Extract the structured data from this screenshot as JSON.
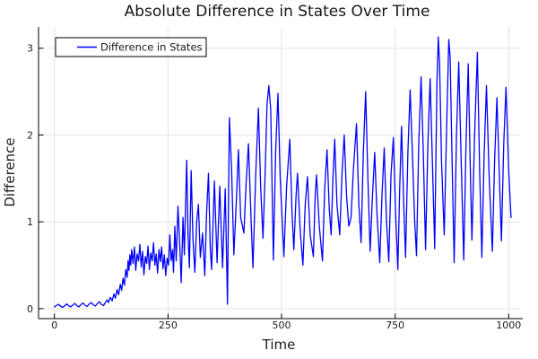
{
  "title": "Absolute Difference in States Over Time",
  "chart_data": {
    "type": "line",
    "title": "Absolute Difference in States Over Time",
    "xlabel": "Time",
    "ylabel": "Difference",
    "x_ticks": [
      0,
      250,
      500,
      750,
      1000
    ],
    "y_ticks": [
      0,
      1,
      2,
      3
    ],
    "xlim": [
      -35,
      1025
    ],
    "ylim": [
      -0.115,
      3.245
    ],
    "grid": true,
    "legend_position": "top-left",
    "line_color": "#0000ff",
    "grid_color": "#e2e2e2",
    "axis_color": "#000000",
    "background_color": "#ffffff",
    "series": [
      {
        "name": "Difference in States",
        "points": [
          [
            0,
            0.02
          ],
          [
            4,
            0.035
          ],
          [
            9,
            0.05
          ],
          [
            13,
            0.03
          ],
          [
            18,
            0.015
          ],
          [
            22,
            0.03
          ],
          [
            27,
            0.055
          ],
          [
            31,
            0.035
          ],
          [
            36,
            0.02
          ],
          [
            40,
            0.04
          ],
          [
            45,
            0.06
          ],
          [
            49,
            0.035
          ],
          [
            54,
            0.02
          ],
          [
            58,
            0.045
          ],
          [
            63,
            0.065
          ],
          [
            67,
            0.04
          ],
          [
            72,
            0.025
          ],
          [
            76,
            0.05
          ],
          [
            81,
            0.07
          ],
          [
            85,
            0.045
          ],
          [
            90,
            0.03
          ],
          [
            94,
            0.055
          ],
          [
            99,
            0.08
          ],
          [
            103,
            0.05
          ],
          [
            108,
            0.035
          ],
          [
            112,
            0.07
          ],
          [
            116,
            0.1
          ],
          [
            119,
            0.07
          ],
          [
            123,
            0.13
          ],
          [
            127,
            0.09
          ],
          [
            131,
            0.17
          ],
          [
            134,
            0.12
          ],
          [
            138,
            0.22
          ],
          [
            141,
            0.16
          ],
          [
            145,
            0.28
          ],
          [
            148,
            0.21
          ],
          [
            151,
            0.35
          ],
          [
            154,
            0.27
          ],
          [
            157,
            0.45
          ],
          [
            160,
            0.36
          ],
          [
            162,
            0.55
          ],
          [
            164,
            0.44
          ],
          [
            166,
            0.62
          ],
          [
            168,
            0.5
          ],
          [
            170,
            0.68
          ],
          [
            173,
            0.52
          ],
          [
            176,
            0.71
          ],
          [
            179,
            0.44
          ],
          [
            182,
            0.63
          ],
          [
            185,
            0.55
          ],
          [
            188,
            0.74
          ],
          [
            191,
            0.48
          ],
          [
            194,
            0.66
          ],
          [
            197,
            0.39
          ],
          [
            200,
            0.6
          ],
          [
            203,
            0.52
          ],
          [
            206,
            0.72
          ],
          [
            209,
            0.45
          ],
          [
            212,
            0.64
          ],
          [
            215,
            0.55
          ],
          [
            218,
            0.76
          ],
          [
            221,
            0.5
          ],
          [
            224,
            0.63
          ],
          [
            227,
            0.41
          ],
          [
            230,
            0.68
          ],
          [
            233,
            0.54
          ],
          [
            236,
            0.71
          ],
          [
            239,
            0.46
          ],
          [
            242,
            0.62
          ],
          [
            245,
            0.38
          ],
          [
            248,
            0.58
          ],
          [
            251,
            0.5
          ],
          [
            254,
            0.85
          ],
          [
            257,
            0.55
          ],
          [
            260,
            0.68
          ],
          [
            262,
            0.42
          ],
          [
            265,
            0.95
          ],
          [
            268,
            0.55
          ],
          [
            272,
            1.18
          ],
          [
            276,
            0.7
          ],
          [
            279,
            0.3
          ],
          [
            283,
            1.05
          ],
          [
            286,
            0.62
          ],
          [
            291,
            1.71
          ],
          [
            294,
            0.85
          ],
          [
            297,
            0.47
          ],
          [
            301,
            1.59
          ],
          [
            305,
            0.8
          ],
          [
            309,
            0.42
          ],
          [
            313,
            1.0
          ],
          [
            317,
            1.2
          ],
          [
            321,
            0.59
          ],
          [
            326,
            0.87
          ],
          [
            331,
            0.38
          ],
          [
            335,
            1.1
          ],
          [
            339,
            1.56
          ],
          [
            343,
            0.7
          ],
          [
            346,
            0.45
          ],
          [
            352,
            1.47
          ],
          [
            358,
            0.53
          ],
          [
            364,
            1.41
          ],
          [
            370,
            0.47
          ],
          [
            376,
            1.38
          ],
          [
            381,
            0.05
          ],
          [
            385,
            2.2
          ],
          [
            390,
            1.6
          ],
          [
            395,
            0.62
          ],
          [
            400,
            1.2
          ],
          [
            405,
            1.83
          ],
          [
            410,
            1.05
          ],
          [
            417,
            0.87
          ],
          [
            422,
            1.45
          ],
          [
            427,
            1.9
          ],
          [
            433,
            1.0
          ],
          [
            437,
            0.47
          ],
          [
            443,
            1.55
          ],
          [
            449,
            2.31
          ],
          [
            454,
            1.4
          ],
          [
            459,
            0.81
          ],
          [
            464,
            1.6
          ],
          [
            468,
            2.35
          ],
          [
            472,
            2.57
          ],
          [
            476,
            2.3
          ],
          [
            482,
            0.56
          ],
          [
            487,
            1.8
          ],
          [
            492,
            2.48
          ],
          [
            497,
            1.5
          ],
          [
            505,
            0.6
          ],
          [
            511,
            1.4
          ],
          [
            518,
            1.95
          ],
          [
            523,
            1.1
          ],
          [
            527,
            0.68
          ],
          [
            532,
            1.3
          ],
          [
            535,
            1.56
          ],
          [
            541,
            0.9
          ],
          [
            547,
            0.5
          ],
          [
            552,
            1.2
          ],
          [
            557,
            1.52
          ],
          [
            563,
            0.85
          ],
          [
            570,
            0.6
          ],
          [
            574,
            1.3
          ],
          [
            577,
            1.54
          ],
          [
            583,
            0.95
          ],
          [
            590,
            0.55
          ],
          [
            595,
            1.4
          ],
          [
            600,
            1.83
          ],
          [
            605,
            1.15
          ],
          [
            609,
            0.85
          ],
          [
            613,
            1.5
          ],
          [
            617,
            1.95
          ],
          [
            622,
            1.2
          ],
          [
            628,
            0.85
          ],
          [
            633,
            1.55
          ],
          [
            638,
            2.0
          ],
          [
            643,
            1.3
          ],
          [
            648,
            0.95
          ],
          [
            653,
            1.05
          ],
          [
            658,
            1.6
          ],
          [
            665,
            2.13
          ],
          [
            670,
            1.2
          ],
          [
            675,
            0.76
          ],
          [
            680,
            1.8
          ],
          [
            685,
            2.5
          ],
          [
            690,
            1.5
          ],
          [
            695,
            0.66
          ],
          [
            700,
            1.3
          ],
          [
            705,
            1.8
          ],
          [
            710,
            1.1
          ],
          [
            716,
            0.53
          ],
          [
            721,
            1.3
          ],
          [
            726,
            1.85
          ],
          [
            731,
            1.0
          ],
          [
            736,
            0.54
          ],
          [
            741,
            1.55
          ],
          [
            746,
            1.97
          ],
          [
            751,
            1.1
          ],
          [
            756,
            0.45
          ],
          [
            760,
            1.4
          ],
          [
            764,
            2.1
          ],
          [
            769,
            1.2
          ],
          [
            773,
            0.59
          ],
          [
            778,
            1.8
          ],
          [
            783,
            2.52
          ],
          [
            788,
            1.8
          ],
          [
            793,
            1.0
          ],
          [
            797,
            0.61
          ],
          [
            802,
            1.9
          ],
          [
            807,
            2.67
          ],
          [
            812,
            1.8
          ],
          [
            817,
            0.68
          ],
          [
            822,
            1.9
          ],
          [
            827,
            2.65
          ],
          [
            832,
            1.7
          ],
          [
            837,
            0.69
          ],
          [
            842,
            2.6
          ],
          [
            845,
            3.13
          ],
          [
            848,
            2.8
          ],
          [
            852,
            1.7
          ],
          [
            858,
            0.85
          ],
          [
            863,
            2.0
          ],
          [
            868,
            3.1
          ],
          [
            871,
            2.9
          ],
          [
            875,
            1.8
          ],
          [
            880,
            0.53
          ],
          [
            885,
            2.0
          ],
          [
            890,
            2.84
          ],
          [
            895,
            1.8
          ],
          [
            901,
            0.56
          ],
          [
            906,
            1.9
          ],
          [
            911,
            2.82
          ],
          [
            915,
            1.7
          ],
          [
            919,
            0.79
          ],
          [
            925,
            2.0
          ],
          [
            931,
            2.95
          ],
          [
            936,
            1.6
          ],
          [
            941,
            0.59
          ],
          [
            946,
            1.8
          ],
          [
            951,
            2.57
          ],
          [
            957,
            1.5
          ],
          [
            964,
            0.66
          ],
          [
            969,
            1.7
          ],
          [
            974,
            2.43
          ],
          [
            979,
            1.6
          ],
          [
            984,
            0.78
          ],
          [
            989,
            1.9
          ],
          [
            994,
            2.55
          ],
          [
            1000,
            1.6
          ],
          [
            1005,
            1.05
          ]
        ]
      }
    ]
  }
}
